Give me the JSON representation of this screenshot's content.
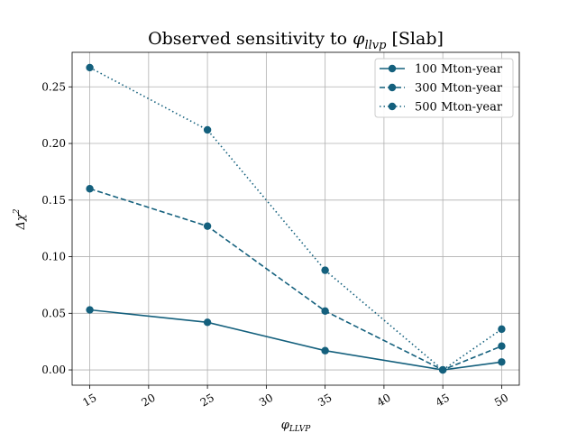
{
  "chart_data": {
    "type": "line",
    "title": "Observed sensitivity to φ_llvp [Slab]",
    "title_parts": {
      "prefix": "Observed sensitivity to ",
      "symbol": "φ",
      "subscript": "llvp",
      "suffix": " [Slab]"
    },
    "xlabel": "φ_LLVP",
    "xlabel_parts": {
      "symbol": "φ",
      "subscript": "LLVP"
    },
    "ylabel": "Δχ²",
    "ylabel_parts": {
      "symbol": "Δχ",
      "superscript": "2"
    },
    "x": [
      15,
      25,
      35,
      45,
      50
    ],
    "series": [
      {
        "name": "100 Mton-year",
        "values": [
          0.053,
          0.042,
          0.017,
          0.0,
          0.007
        ],
        "linestyle": "solid"
      },
      {
        "name": "300 Mton-year",
        "values": [
          0.16,
          0.127,
          0.052,
          0.0,
          0.021
        ],
        "linestyle": "dashed"
      },
      {
        "name": "500 Mton-year",
        "values": [
          0.267,
          0.212,
          0.088,
          0.0,
          0.036
        ],
        "linestyle": "dotted"
      }
    ],
    "xlim": [
      13.5,
      51.5
    ],
    "ylim": [
      -0.0135,
      0.2805
    ],
    "xticks": [
      "15",
      "20",
      "25",
      "30",
      "35",
      "40",
      "45",
      "50"
    ],
    "yticks": [
      "0.00",
      "0.05",
      "0.10",
      "0.15",
      "0.20",
      "0.25"
    ],
    "grid": true,
    "legend_position": "top-right",
    "color": "#14607d"
  }
}
